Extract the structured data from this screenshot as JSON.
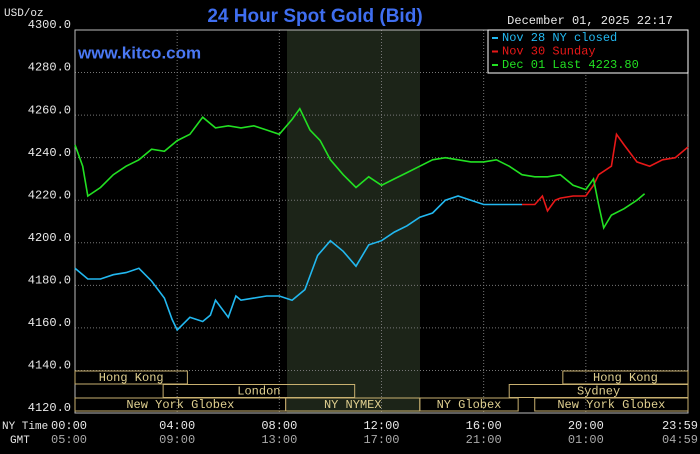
{
  "chart_data": {
    "type": "line",
    "title": "24 Hour Spot Gold (Bid)",
    "unit_label": "USD/oz",
    "timestamp": "December 01, 2025 22:17",
    "watermark": "www.kitco.com",
    "xlim": [
      0,
      24
    ],
    "xticks": [
      {
        "value": 0,
        "label": "00:00"
      },
      {
        "value": 4,
        "label": "04:00"
      },
      {
        "value": 8,
        "label": "08:00"
      },
      {
        "value": 12,
        "label": "12:00"
      },
      {
        "value": 16,
        "label": "16:00"
      },
      {
        "value": 20,
        "label": "20:00"
      },
      {
        "value": 24,
        "label": "23:59"
      }
    ],
    "xticks_gmt": [
      "05:00",
      "09:00",
      "13:00",
      "17:00",
      "21:00",
      "01:00",
      "04:59"
    ],
    "x_row_labels": [
      "NY Time",
      "GMT"
    ],
    "ylim": [
      4120,
      4300
    ],
    "yticks": [
      {
        "value": 4120,
        "label": "4120.0"
      },
      {
        "value": 4140,
        "label": "4140.0"
      },
      {
        "value": 4160,
        "label": "4160.0"
      },
      {
        "value": 4180,
        "label": "4180.0"
      },
      {
        "value": 4200,
        "label": "4200.0"
      },
      {
        "value": 4220,
        "label": "4220.0"
      },
      {
        "value": 4240,
        "label": "4240.0"
      },
      {
        "value": 4260,
        "label": "4260.0"
      },
      {
        "value": 4280,
        "label": "4280.0"
      },
      {
        "value": 4300,
        "label": "4300.0"
      }
    ],
    "grid": true,
    "series": [
      {
        "name": "Nov 28 NY closed",
        "color": "#22b8f0",
        "x": [
          0,
          0.5,
          1,
          1.5,
          2,
          2.5,
          3,
          3.5,
          3.8,
          4,
          4.5,
          5,
          5.3,
          5.5,
          6,
          6.3,
          6.5,
          7,
          7.5,
          8,
          8.5,
          9,
          9.5,
          10,
          10.5,
          11,
          11.5,
          12,
          12.5,
          13,
          13.5,
          14,
          14.5,
          15,
          15.5,
          16,
          16.5,
          17,
          17.5
        ],
        "values": [
          4188,
          4183,
          4183,
          4185,
          4186,
          4188,
          4182,
          4174,
          4164,
          4159,
          4165,
          4163,
          4166,
          4173,
          4165,
          4175,
          4173,
          4174,
          4175,
          4175,
          4173,
          4178,
          4194,
          4201,
          4196,
          4189,
          4199,
          4201,
          4205,
          4208,
          4212,
          4214,
          4220,
          4222,
          4220,
          4218,
          4218,
          4218,
          4218
        ]
      },
      {
        "name": "Nov 30 Sunday",
        "color": "#e81818",
        "x": [
          17.5,
          18,
          18.3,
          18.5,
          18.8,
          19,
          19.5,
          20,
          20.3,
          20.5,
          21,
          21.2,
          21.5,
          22,
          22.5,
          23,
          23.5,
          24
        ],
        "values": [
          4218,
          4218,
          4222,
          4215,
          4220,
          4221,
          4222,
          4222,
          4227,
          4232,
          4236,
          4251,
          4246,
          4238,
          4236,
          4239,
          4240,
          4245
        ]
      },
      {
        "name": "Dec 01 Last 4223.80",
        "color": "#22e022",
        "x": [
          0,
          0.3,
          0.5,
          1,
          1.5,
          2,
          2.5,
          3,
          3.5,
          4,
          4.5,
          5,
          5.5,
          6,
          6.5,
          7,
          7.5,
          8,
          8.5,
          8.8,
          9.2,
          9.6,
          10,
          10.5,
          11,
          11.5,
          12,
          12.5,
          13,
          13.5,
          14,
          14.5,
          15,
          15.5,
          16,
          16.5,
          17,
          17.5,
          18,
          18.5,
          19,
          19.5,
          20,
          20.3,
          20.5,
          20.7,
          21,
          21.5,
          22,
          22.3
        ],
        "values": [
          4246,
          4236,
          4222,
          4226,
          4232,
          4236,
          4239,
          4244,
          4243,
          4248,
          4251,
          4259,
          4254,
          4255,
          4254,
          4255,
          4253,
          4251,
          4258,
          4263,
          4253,
          4248,
          4239,
          4232,
          4226,
          4231,
          4227,
          4230,
          4233,
          4236,
          4239,
          4240,
          4239,
          4238,
          4238,
          4239,
          4236,
          4232,
          4231,
          4231,
          4232,
          4227,
          4225,
          4230,
          4218,
          4207,
          4213,
          4216,
          4220,
          4223
        ]
      }
    ],
    "session_rows": [
      [
        {
          "label": "Hong Kong",
          "start": 0,
          "end": 4.4
        },
        {
          "label": "Hong Kong",
          "start": 19.1,
          "end": 24
        }
      ],
      [
        {
          "label": "London",
          "start": 3.45,
          "end": 10.95
        },
        {
          "label": "Sydney",
          "start": 17,
          "end": 24
        }
      ],
      [
        {
          "label": "New York Globex",
          "start": 0,
          "end": 8.25
        },
        {
          "label": "NY NYMEX",
          "start": 8.25,
          "end": 13.5
        },
        {
          "label": "NY Globex",
          "start": 13.5,
          "end": 17.35
        },
        {
          "label": "New York Globex",
          "start": 18,
          "end": 24
        }
      ]
    ]
  }
}
